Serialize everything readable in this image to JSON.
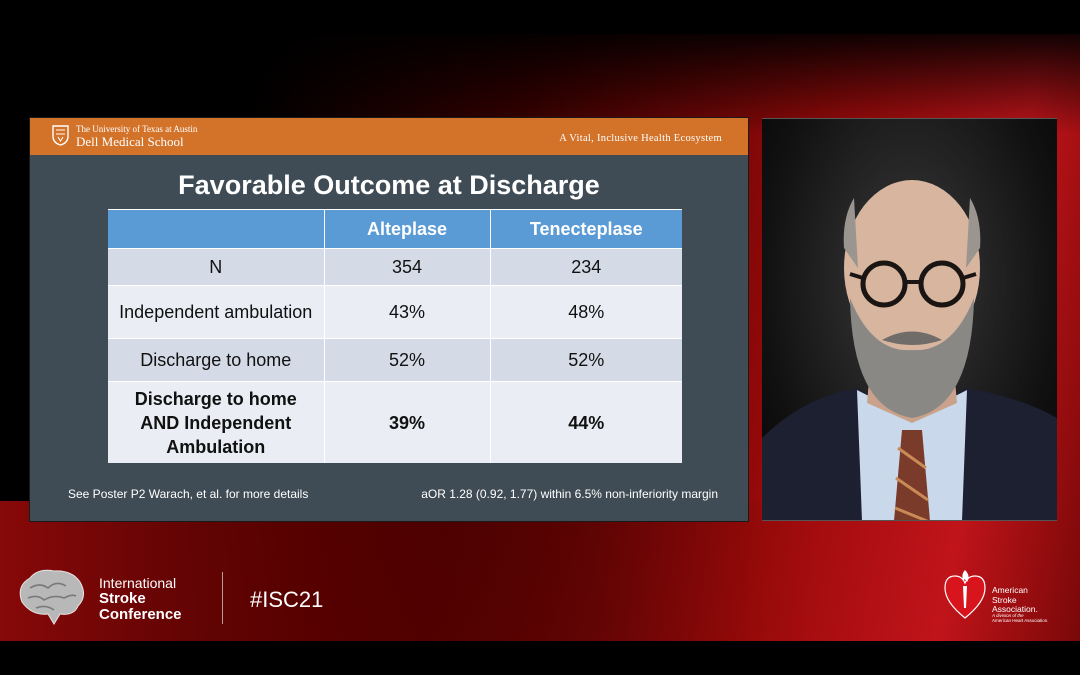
{
  "slide": {
    "header": {
      "institution_line1": "The University of Texas at Austin",
      "institution_line2": "Dell Medical School",
      "tagline": "A Vital, Inclusive Health Ecosystem"
    },
    "title": "Favorable Outcome at Discharge",
    "table": {
      "columns": [
        "",
        "Alteplase",
        "Tenecteplase"
      ],
      "rows": [
        [
          "N",
          "354",
          "234"
        ],
        [
          "Independent ambulation",
          "43%",
          "48%"
        ],
        [
          "Discharge to home",
          "52%",
          "52%"
        ],
        [
          "Discharge to home AND Independent Ambulation",
          "39%",
          "44%"
        ]
      ]
    },
    "footer_left": "See Poster P2  Warach, et al. for more details",
    "footer_right": "aOR 1.28 (0.92, 1.77) within 6.5% non-inferiority margin"
  },
  "conference": {
    "line1": "International",
    "line2": "Stroke",
    "line3": "Conference",
    "hashtag": "#ISC21"
  },
  "sponsor": {
    "line1": "American",
    "line2": "Stroke",
    "line3": "Association.",
    "line4": "A division of the",
    "line5": "American Heart Association."
  },
  "colors": {
    "header_orange": "#d3732a",
    "slide_bg": "#3f4c55",
    "table_header_blue": "#5b9bd5",
    "table_row_dark": "#d4dbe6",
    "table_row_light": "#eaeef4",
    "brand_red": "#c0141a"
  },
  "icons": [
    "ut-shield-logo",
    "brain-logo",
    "heart-torch-logo"
  ]
}
